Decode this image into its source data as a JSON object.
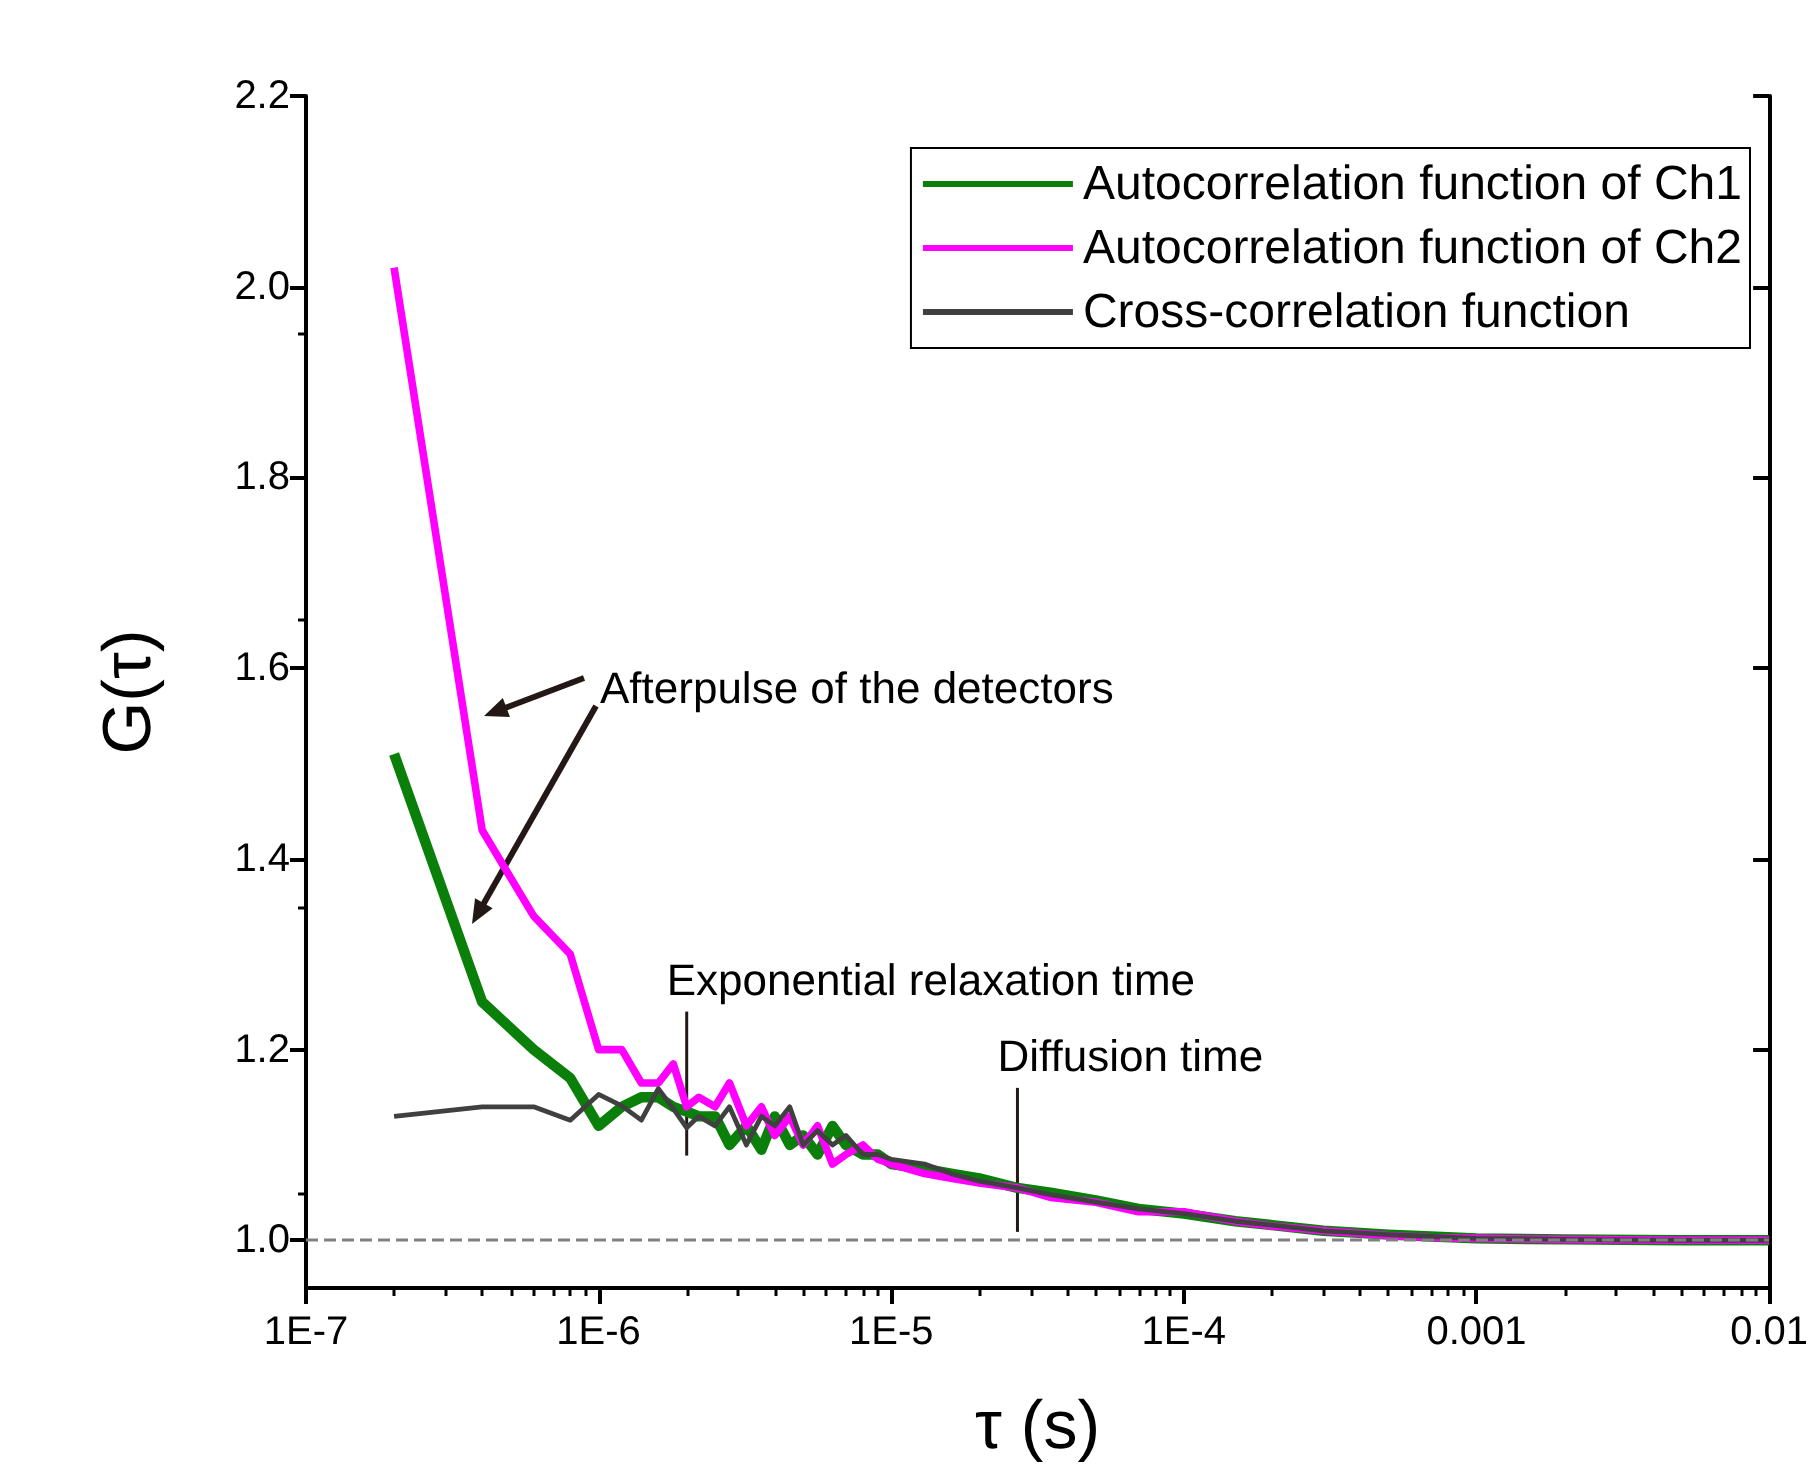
{
  "chart_data": {
    "type": "line",
    "xlabel": "τ (s)",
    "ylabel": "G(τ)",
    "log": "x",
    "x": [
      2e-07,
      4e-07,
      6e-07,
      8e-07,
      1e-06,
      1.2e-06,
      1.4e-06,
      1.6e-06,
      1.8e-06,
      2e-06,
      2.2e-06,
      2.5e-06,
      2.8e-06,
      3.2e-06,
      3.6e-06,
      4e-06,
      4.5e-06,
      5e-06,
      5.6e-06,
      6.3e-06,
      7e-06,
      8e-06,
      9e-06,
      1e-05,
      1.3e-05,
      1.6e-05,
      2e-05,
      2.7e-05,
      3.5e-05,
      5e-05,
      7e-05,
      0.0001,
      0.00015,
      0.0002,
      0.0003,
      0.0005,
      0.0007,
      0.001,
      0.002,
      0.005,
      0.01
    ],
    "series": [
      {
        "name": "Autocorrelation function of Ch1",
        "color": "#0a800a",
        "values": [
          1.51,
          1.25,
          1.2,
          1.17,
          1.12,
          1.14,
          1.15,
          1.15,
          1.14,
          1.135,
          1.13,
          1.13,
          1.1,
          1.12,
          1.095,
          1.13,
          1.1,
          1.11,
          1.09,
          1.12,
          1.1,
          1.09,
          1.09,
          1.08,
          1.075,
          1.07,
          1.065,
          1.055,
          1.05,
          1.042,
          1.033,
          1.028,
          1.02,
          1.016,
          1.01,
          1.006,
          1.004,
          1.002,
          1.001,
          1.0,
          1.0
        ]
      },
      {
        "name": "Autocorrelation function of Ch2",
        "color": "#ff00ff",
        "values": [
          2.02,
          1.43,
          1.34,
          1.3,
          1.2,
          1.2,
          1.165,
          1.165,
          1.185,
          1.14,
          1.15,
          1.14,
          1.165,
          1.12,
          1.14,
          1.11,
          1.13,
          1.1,
          1.12,
          1.08,
          1.09,
          1.1,
          1.085,
          1.08,
          1.07,
          1.065,
          1.06,
          1.055,
          1.045,
          1.04,
          1.03,
          1.03,
          1.02,
          1.015,
          1.01,
          1.005,
          1.003,
          1.002,
          1.001,
          1.0,
          1.0
        ]
      },
      {
        "name": "Cross-correlation function",
        "color": "#404040",
        "values": [
          1.13,
          1.14,
          1.14,
          1.126,
          1.153,
          1.141,
          1.126,
          1.159,
          1.138,
          1.118,
          1.13,
          1.12,
          1.14,
          1.1,
          1.13,
          1.12,
          1.14,
          1.1,
          1.115,
          1.1,
          1.11,
          1.09,
          1.09,
          1.085,
          1.08,
          1.07,
          1.062,
          1.055,
          1.048,
          1.04,
          1.033,
          1.028,
          1.02,
          1.016,
          1.01,
          1.006,
          1.004,
          1.002,
          1.001,
          1.0,
          1.0
        ]
      }
    ],
    "xlim": [
      1e-07,
      0.01
    ],
    "xticks": [
      {
        "value": 1e-07,
        "label": "1E-7"
      },
      {
        "value": 1e-06,
        "label": "1E-6"
      },
      {
        "value": 1e-05,
        "label": "1E-5"
      },
      {
        "value": 0.0001,
        "label": "1E-4"
      },
      {
        "value": 0.001,
        "label": "0.001"
      },
      {
        "value": 0.01,
        "label": "0.01"
      }
    ],
    "ylim": [
      0.95,
      2.2
    ],
    "yticks": [
      {
        "value": 1,
        "label": "1.0"
      },
      {
        "value": 1.2,
        "label": "1.2"
      },
      {
        "value": 1.4,
        "label": "1.4"
      },
      {
        "value": 1.6,
        "label": "1.6"
      },
      {
        "value": 1.8,
        "label": "1.8"
      },
      {
        "value": 2,
        "label": "2.0"
      },
      {
        "value": 2.2,
        "label": "2.2"
      }
    ],
    "ref_lines": [
      {
        "axis": "y",
        "value": 1,
        "color": "#808080",
        "line_style": "dashed"
      }
    ],
    "legend": "top right",
    "annotations": [
      "Afterpulse of the detectors",
      {
        "text": "Exponential relaxation time",
        "x": 2e-06,
        "y": 1.135
      },
      {
        "text": "Diffusion time",
        "x": 2.7e-05,
        "y": 1.055
      }
    ]
  }
}
